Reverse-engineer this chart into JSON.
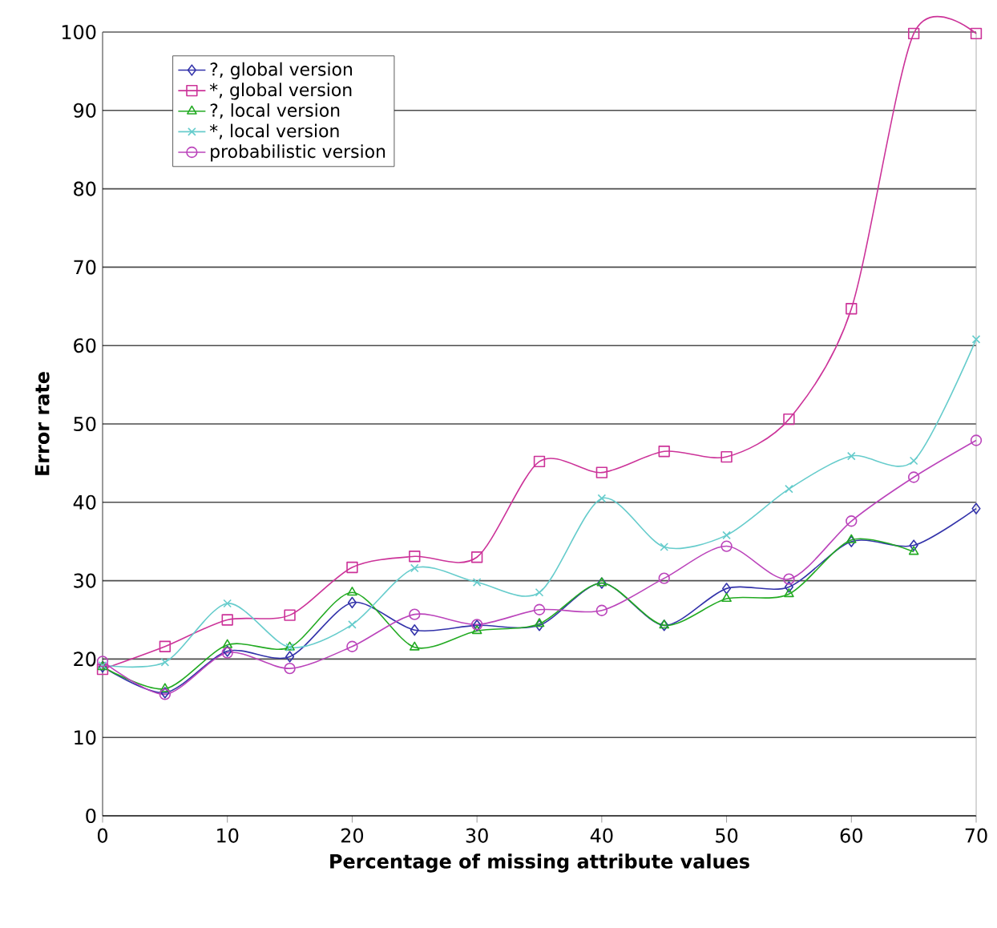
{
  "chart_data": {
    "type": "line",
    "xlabel": "Percentage of missing attribute values",
    "ylabel": "Error rate",
    "x": [
      0,
      5,
      10,
      15,
      20,
      25,
      30,
      35,
      40,
      45,
      50,
      55,
      60,
      65,
      70
    ],
    "xlim": [
      0,
      70
    ],
    "xticks": [
      0,
      10,
      20,
      30,
      40,
      50,
      60,
      70
    ],
    "ylim": [
      0,
      100
    ],
    "yticks": [
      0,
      10,
      20,
      30,
      40,
      50,
      60,
      70,
      80,
      90,
      100
    ],
    "grid": "y",
    "legend": "top left",
    "series": [
      {
        "name": "?, global version",
        "color": "#3333aa",
        "marker": "diamond",
        "values": [
          19,
          15.7,
          21,
          20.3,
          27.2,
          23.7,
          24.3,
          24.3,
          29.7,
          24.3,
          29,
          29.2,
          35,
          34.5,
          39.2
        ]
      },
      {
        "name": "*, global version",
        "color": "#cc3399",
        "marker": "square",
        "values": [
          18.7,
          21.6,
          25,
          25.6,
          31.7,
          33.1,
          33,
          45.2,
          43.8,
          46.5,
          45.8,
          50.6,
          64.7,
          99.8,
          99.8
        ]
      },
      {
        "name": "?, local version",
        "color": "#22aa22",
        "marker": "triangle",
        "values": [
          19,
          16.2,
          21.8,
          21.5,
          28.5,
          21.5,
          23.6,
          24.5,
          29.7,
          24.3,
          27.7,
          28.3,
          35.2,
          33.7,
          null
        ]
      },
      {
        "name": "*, local version",
        "color": "#66cccc",
        "marker": "cross",
        "values": [
          19.2,
          19.6,
          27.1,
          21.5,
          24.4,
          31.6,
          29.8,
          28.5,
          40.5,
          34.3,
          35.8,
          41.7,
          45.9,
          45.3,
          60.8
        ]
      },
      {
        "name": "probabilistic version",
        "color": "#bb44bb",
        "marker": "circle",
        "values": [
          19.7,
          15.5,
          20.8,
          18.8,
          21.6,
          25.7,
          24.4,
          26.3,
          26.2,
          30.3,
          34.4,
          30.2,
          37.6,
          43.2,
          47.9
        ]
      }
    ]
  }
}
